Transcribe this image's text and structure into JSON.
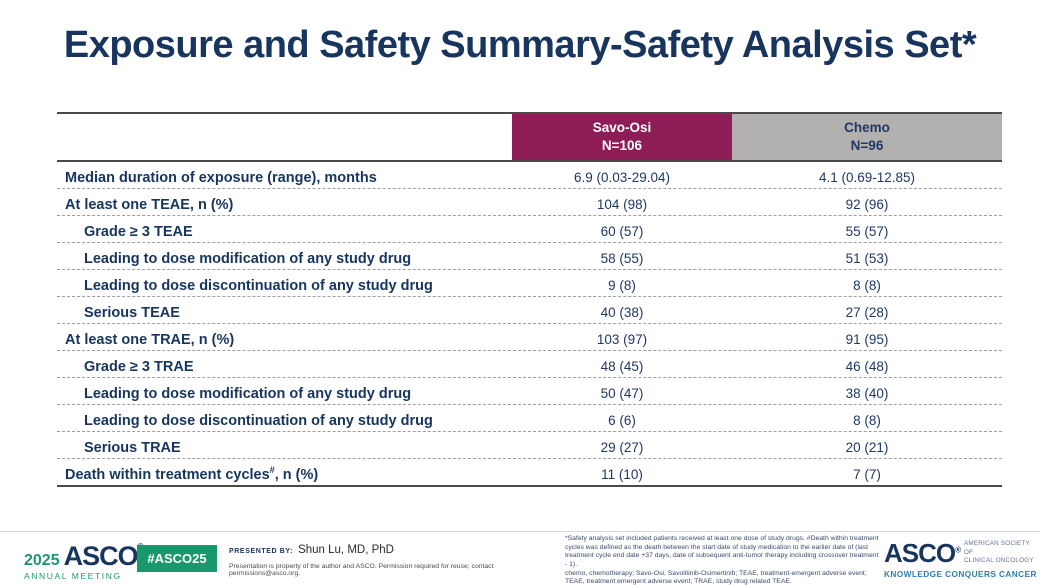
{
  "slide": {
    "title": "Exposure and Safety Summary-Safety Analysis Set*"
  },
  "colors": {
    "title_navy": "#17355E",
    "savo_osi_header_bg": "#8E1C56",
    "savo_osi_header_text": "#FFFFFF",
    "chemo_header_bg": "#B3B0B0",
    "chemo_header_text": "#1F3864",
    "asco_green": "#18986B",
    "asco_navy": "#17355E",
    "tagline_blue": "#2F7FAD"
  },
  "table": {
    "columns": [
      {
        "label": "Savo-Osi",
        "n": "N=106"
      },
      {
        "label": "Chemo",
        "n": "N=96"
      }
    ],
    "rows": [
      {
        "label": "Median duration of exposure (range), months",
        "sup": "",
        "suffix": "",
        "indent": 0,
        "savo_osi": "6.9 (0.03-29.04)",
        "chemo": "4.1 (0.69-12.85)"
      },
      {
        "label": "At least one TEAE, n (%)",
        "sup": "",
        "suffix": "",
        "indent": 0,
        "savo_osi": "104 (98)",
        "chemo": "92 (96)"
      },
      {
        "label": "Grade ≥ 3 TEAE",
        "sup": "",
        "suffix": "",
        "indent": 1,
        "savo_osi": "60 (57)",
        "chemo": "55 (57)"
      },
      {
        "label": "Leading to dose modification of any study drug",
        "sup": "",
        "suffix": "",
        "indent": 1,
        "savo_osi": "58 (55)",
        "chemo": "51 (53)"
      },
      {
        "label": "Leading to dose discontinuation of any study drug",
        "sup": "",
        "suffix": "",
        "indent": 1,
        "savo_osi": "9 (8)",
        "chemo": "8 (8)"
      },
      {
        "label": "Serious TEAE",
        "sup": "",
        "suffix": "",
        "indent": 1,
        "savo_osi": "40 (38)",
        "chemo": "27 (28)"
      },
      {
        "label": "At least one TRAE, n (%)",
        "sup": "",
        "suffix": "",
        "indent": 0,
        "savo_osi": "103 (97)",
        "chemo": "91 (95)"
      },
      {
        "label": "Grade ≥ 3 TRAE",
        "sup": "",
        "suffix": "",
        "indent": 1,
        "savo_osi": "48 (45)",
        "chemo": "46 (48)"
      },
      {
        "label": "Leading to dose modification of any study drug",
        "sup": "",
        "suffix": "",
        "indent": 1,
        "savo_osi": "50 (47)",
        "chemo": "38 (40)"
      },
      {
        "label": "Leading to dose discontinuation of any study drug",
        "sup": "",
        "suffix": "",
        "indent": 1,
        "savo_osi": "6 (6)",
        "chemo": "8 (8)"
      },
      {
        "label": "Serious TRAE",
        "sup": "",
        "suffix": "",
        "indent": 1,
        "savo_osi": "29 (27)",
        "chemo": "20 (21)"
      },
      {
        "label": "Death within treatment cycles",
        "sup": "#",
        "suffix": ", n (%)",
        "indent": 0,
        "savo_osi": "11 (10)",
        "chemo": "7 (7)"
      }
    ]
  },
  "footer": {
    "annual_meeting": {
      "year": "2025",
      "org": "ASCO",
      "reg": "®",
      "line2": "ANNUAL MEETING"
    },
    "hashtag": "#ASCO25",
    "presented_by_label": "PRESENTED BY:",
    "presenter": "Shun Lu, MD, PhD",
    "permission": "Presentation is property of the author and ASCO. Permission required for reuse; contact permissions@asco.org.",
    "footnote_lines": [
      "*Safety analysis set included patients received at least one dose of study drugs. #Death within treatment cycles was defined as the death between the start date of study medication to the earlier date of (last treatment cycle end date +37 days, date of subsequent anti-tumor therapy including crossover treatment - 1).",
      "chemo, chemotherapy; Savo-Osi, Savolitinib-Osimertinib; TEAE, treatment-emergent adverse event; TEAE, treatment emergent adverse event; TRAE, study drug related TEAE."
    ],
    "asco_logo": {
      "name": "ASCO",
      "reg": "®",
      "society_line1": "AMERICAN SOCIETY OF",
      "society_line2": "CLINICAL ONCOLOGY",
      "tagline": "KNOWLEDGE CONQUERS CANCER"
    }
  }
}
